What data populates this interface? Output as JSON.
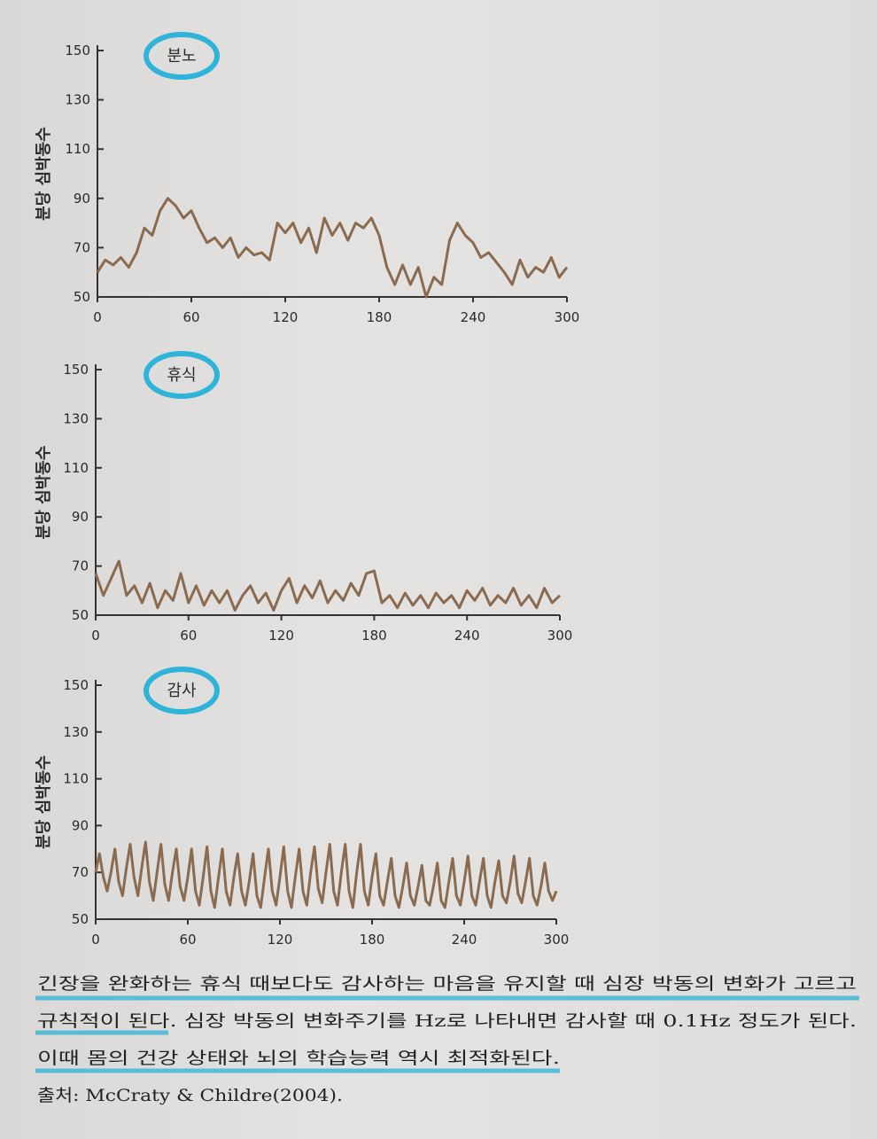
{
  "chart_data": [
    {
      "type": "line",
      "title": "분노",
      "ylabel": "분당 심박동수",
      "color": "#8b6b4f",
      "xlim": [
        0,
        300
      ],
      "ylim": [
        50,
        150
      ],
      "xticks": [
        0,
        60,
        120,
        180,
        240,
        300
      ],
      "yticks": [
        50,
        70,
        90,
        110,
        130,
        150
      ],
      "x": [
        0,
        5,
        10,
        15,
        20,
        25,
        30,
        35,
        40,
        45,
        50,
        55,
        60,
        65,
        70,
        75,
        80,
        85,
        90,
        95,
        100,
        105,
        110,
        115,
        120,
        125,
        130,
        135,
        140,
        145,
        150,
        155,
        160,
        165,
        170,
        175,
        180,
        185,
        190,
        195,
        200,
        205,
        210,
        215,
        220,
        225,
        230,
        235,
        240,
        245,
        250,
        255,
        260,
        265,
        270,
        275,
        280,
        285,
        290,
        295,
        300
      ],
      "values": [
        60,
        65,
        63,
        66,
        62,
        68,
        78,
        75,
        85,
        90,
        87,
        82,
        85,
        78,
        72,
        74,
        70,
        74,
        66,
        70,
        67,
        68,
        65,
        80,
        76,
        80,
        72,
        78,
        68,
        82,
        75,
        80,
        73,
        80,
        78,
        82,
        75,
        62,
        55,
        63,
        55,
        62,
        50,
        58,
        55,
        73,
        80,
        75,
        72,
        66,
        68,
        64,
        60,
        55,
        65,
        58,
        62,
        60,
        66,
        58,
        62
      ]
    },
    {
      "type": "line",
      "title": "휴식",
      "ylabel": "분당 심박동수",
      "color": "#8b6b4f",
      "xlim": [
        0,
        300
      ],
      "ylim": [
        50,
        150
      ],
      "xticks": [
        0,
        60,
        120,
        180,
        240,
        300
      ],
      "yticks": [
        50,
        70,
        90,
        110,
        130,
        150
      ],
      "x": [
        0,
        5,
        10,
        15,
        20,
        25,
        30,
        35,
        40,
        45,
        50,
        55,
        60,
        65,
        70,
        75,
        80,
        85,
        90,
        95,
        100,
        105,
        110,
        115,
        120,
        125,
        130,
        135,
        140,
        145,
        150,
        155,
        160,
        165,
        170,
        175,
        180,
        185,
        190,
        195,
        200,
        205,
        210,
        215,
        220,
        225,
        230,
        235,
        240,
        245,
        250,
        255,
        260,
        265,
        270,
        275,
        280,
        285,
        290,
        295,
        300
      ],
      "values": [
        67,
        58,
        65,
        72,
        58,
        62,
        55,
        63,
        53,
        60,
        56,
        67,
        55,
        62,
        54,
        60,
        55,
        60,
        52,
        58,
        62,
        55,
        59,
        52,
        60,
        65,
        55,
        62,
        57,
        64,
        55,
        60,
        56,
        63,
        58,
        67,
        68,
        55,
        58,
        53,
        59,
        54,
        58,
        53,
        59,
        55,
        58,
        53,
        60,
        56,
        61,
        54,
        58,
        55,
        61,
        54,
        58,
        53,
        61,
        55,
        58
      ]
    },
    {
      "type": "line",
      "title": "감사",
      "ylabel": "분당 심박동수",
      "color": "#8b6b4f",
      "xlim": [
        0,
        300
      ],
      "ylim": [
        50,
        150
      ],
      "xticks": [
        0,
        60,
        120,
        180,
        240,
        300
      ],
      "yticks": [
        50,
        70,
        90,
        110,
        130,
        150
      ],
      "x": [
        0,
        2.5,
        5,
        7.5,
        10,
        12.5,
        15,
        17.5,
        20,
        22.5,
        25,
        27.5,
        30,
        32.5,
        35,
        37.5,
        40,
        42.5,
        45,
        47.5,
        50,
        52.5,
        55,
        57.5,
        60,
        62.5,
        65,
        67.5,
        70,
        72.5,
        75,
        77.5,
        80,
        82.5,
        85,
        87.5,
        90,
        92.5,
        95,
        97.5,
        100,
        102.5,
        105,
        107.5,
        110,
        112.5,
        115,
        117.5,
        120,
        122.5,
        125,
        127.5,
        130,
        132.5,
        135,
        137.5,
        140,
        142.5,
        145,
        147.5,
        150,
        152.5,
        155,
        157.5,
        160,
        162.5,
        165,
        167.5,
        170,
        172.5,
        175,
        177.5,
        180,
        182.5,
        185,
        187.5,
        190,
        192.5,
        195,
        197.5,
        200,
        202.5,
        205,
        207.5,
        210,
        212.5,
        215,
        217.5,
        220,
        222.5,
        225,
        227.5,
        230,
        232.5,
        235,
        237.5,
        240,
        242.5,
        245,
        247.5,
        250,
        252.5,
        255,
        257.5,
        260,
        262.5,
        265,
        267.5,
        270,
        272.5,
        275,
        277.5,
        280,
        282.5,
        285,
        287.5,
        290,
        292.5,
        295,
        297.5,
        300
      ],
      "values": [
        70,
        78,
        68,
        62,
        70,
        80,
        66,
        60,
        72,
        82,
        68,
        60,
        72,
        83,
        66,
        58,
        70,
        82,
        65,
        58,
        70,
        80,
        64,
        58,
        68,
        80,
        62,
        56,
        68,
        81,
        62,
        55,
        68,
        80,
        62,
        56,
        68,
        78,
        62,
        56,
        66,
        78,
        60,
        55,
        68,
        80,
        62,
        56,
        68,
        81,
        62,
        55,
        68,
        80,
        62,
        56,
        70,
        81,
        63,
        57,
        70,
        82,
        62,
        56,
        70,
        82,
        62,
        55,
        70,
        82,
        62,
        56,
        68,
        78,
        60,
        56,
        66,
        76,
        60,
        55,
        64,
        74,
        60,
        56,
        64,
        73,
        58,
        56,
        64,
        74,
        58,
        55,
        66,
        76,
        60,
        56,
        66,
        77,
        60,
        56,
        66,
        76,
        60,
        55,
        66,
        75,
        60,
        57,
        66,
        77,
        61,
        57,
        66,
        76,
        60,
        56,
        64,
        74,
        62,
        58,
        62
      ]
    }
  ],
  "caption": {
    "lines": [
      "긴장을 완화하는 휴식 때보다도 감사하는 마음을 유지할 때 심장 박동의 변화가 고르고",
      "규칙적이 된다. 심장 박동의 변화주기를 Hz로 나타내면 감사할 때 0.1Hz 정도가 된다.",
      "이때 몸의 건강 상태와 뇌의 학습능력 역시 최적화된다."
    ],
    "source": "출처: McCraty & Childre(2004)."
  }
}
